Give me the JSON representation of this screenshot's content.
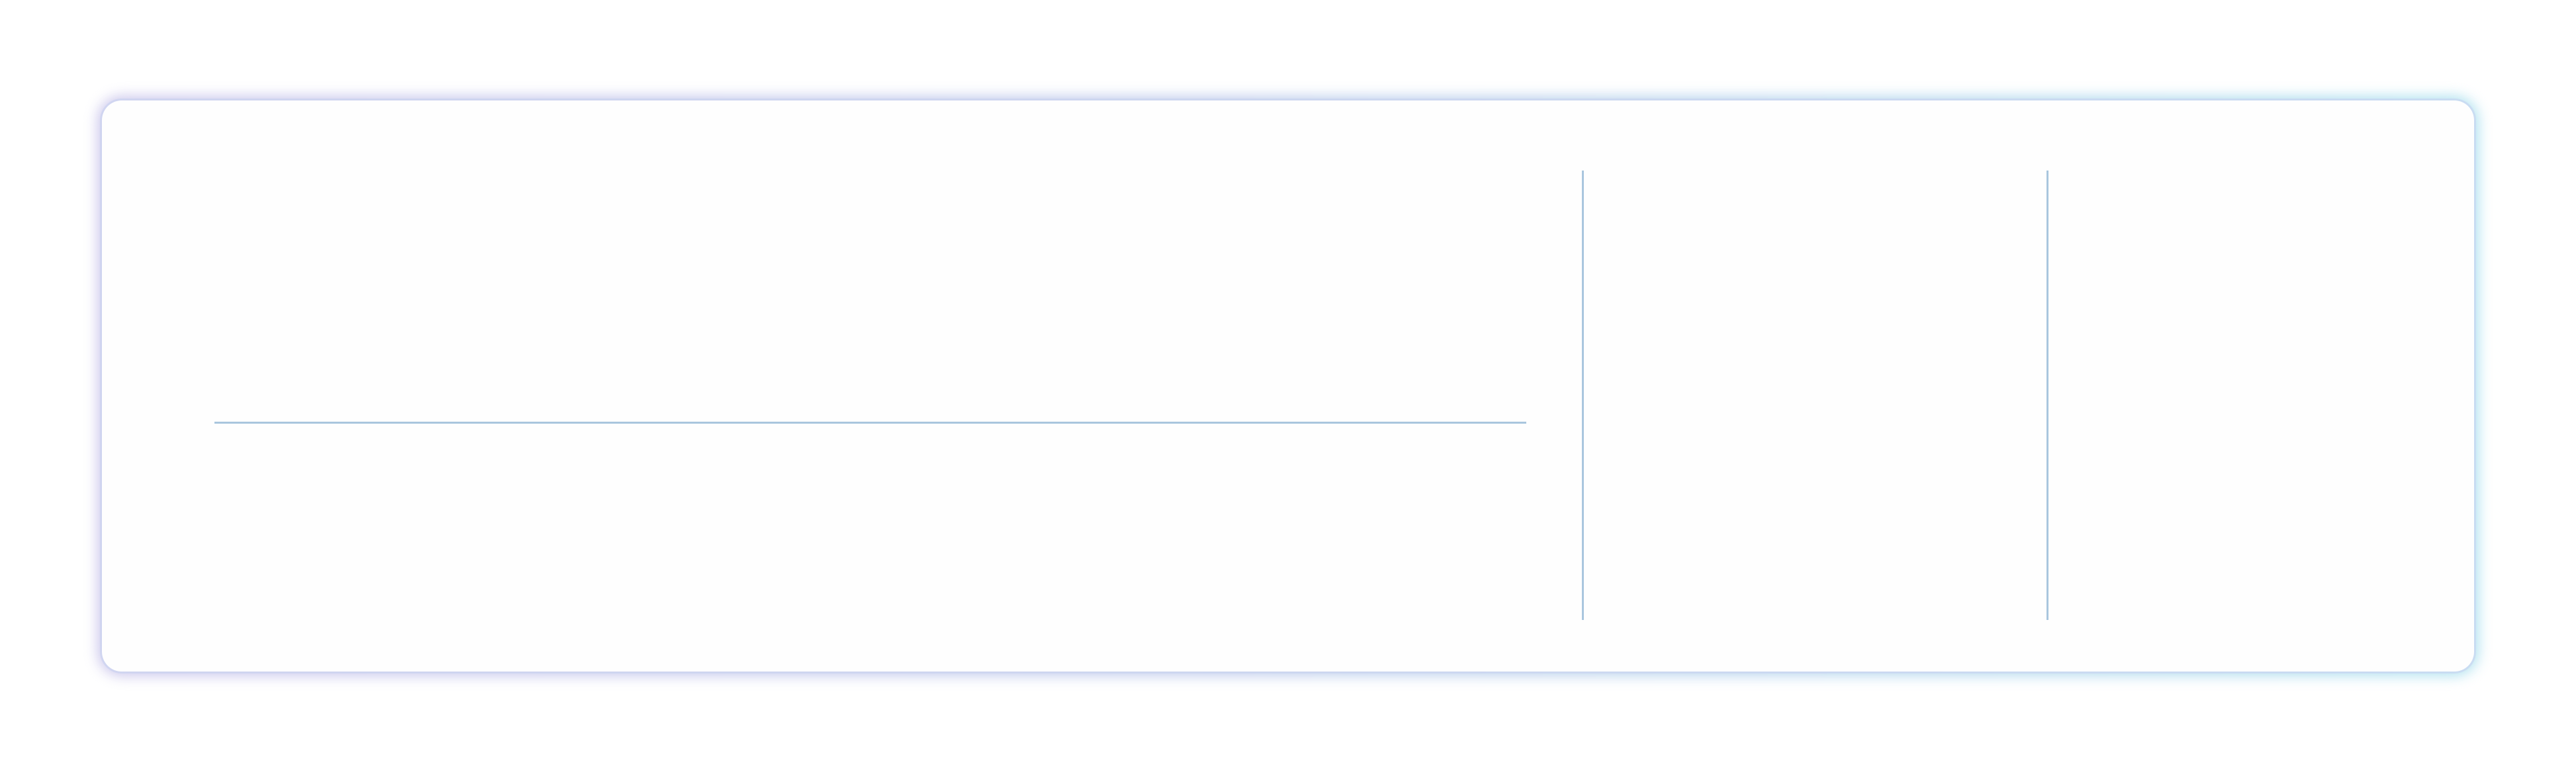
{
  "card": {
    "style": "gradient-glow-border",
    "colors": {
      "background": "#ffffff",
      "card_fill": "#fefefe",
      "glow_start": "#c7c2ea",
      "glow_end": "#a9dfee",
      "divider": "#a9c6de"
    }
  },
  "sections": {
    "left_panel": {
      "text": ""
    },
    "middle_panel": {
      "text": ""
    },
    "right_panel": {
      "text": ""
    }
  }
}
